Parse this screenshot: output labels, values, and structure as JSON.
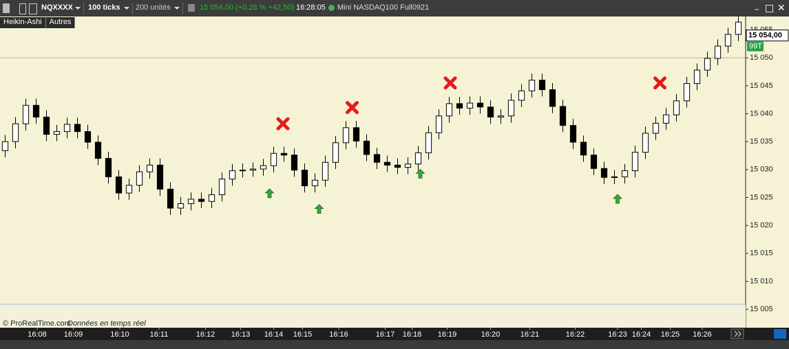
{
  "toolbar": {
    "instrument": "NQXXXX",
    "period": "100 ticks",
    "units": "200 unités",
    "price": "15 054,00",
    "change": "(+0,28 % +42,50)",
    "time": "16:28:05",
    "contract": "Mini NASDAQ100 Full0921"
  },
  "tabs": [
    "Heikin-Ashi",
    "Autres"
  ],
  "footer": {
    "copyright": "© ProRealTime.com",
    "notice": "Données en temps réel"
  },
  "chart_data": {
    "type": "candlestick",
    "xlim": [
      0,
      72.2
    ],
    "ylim": [
      15001.7,
      15057.4
    ],
    "xticks": [
      {
        "value": 3.6,
        "label": "16:08"
      },
      {
        "value": 7.1,
        "label": "16:09"
      },
      {
        "value": 11.6,
        "label": "16:10"
      },
      {
        "value": 15.4,
        "label": "16:11"
      },
      {
        "value": 19.9,
        "label": "16:12"
      },
      {
        "value": 23.3,
        "label": "16:13"
      },
      {
        "value": 26.5,
        "label": "16:14"
      },
      {
        "value": 29.3,
        "label": "16:15"
      },
      {
        "value": 32.8,
        "label": "16:16"
      },
      {
        "value": 37.3,
        "label": "16:17"
      },
      {
        "value": 39.9,
        "label": "16:18"
      },
      {
        "value": 43.3,
        "label": "16:19"
      },
      {
        "value": 47.5,
        "label": "16:20"
      },
      {
        "value": 51.3,
        "label": "16:21"
      },
      {
        "value": 55.7,
        "label": "16:22"
      },
      {
        "value": 59.8,
        "label": "16:23"
      },
      {
        "value": 62.1,
        "label": "16:24"
      },
      {
        "value": 64.9,
        "label": "16:25"
      },
      {
        "value": 68.0,
        "label": "16:26"
      }
    ],
    "yticks": [
      {
        "value": 15005,
        "label": "15 005"
      },
      {
        "value": 15010,
        "label": "15 010"
      },
      {
        "value": 15015,
        "label": "15 015"
      },
      {
        "value": 15020,
        "label": "15 020"
      },
      {
        "value": 15025,
        "label": "15 025"
      },
      {
        "value": 15030,
        "label": "15 030"
      },
      {
        "value": 15035,
        "label": "15 035"
      },
      {
        "value": 15040,
        "label": "15 040"
      },
      {
        "value": 15045,
        "label": "15 045"
      },
      {
        "value": 15050,
        "label": "15 050"
      },
      {
        "value": 15055,
        "label": "15 055"
      }
    ],
    "reference_line": 15050,
    "last_price": {
      "value": 15054,
      "label": "15 054,00"
    },
    "tick_count_label": "99T",
    "up_color": "#ffffff",
    "down_color": "#000000",
    "open": [
      15033.4,
      15035.0,
      15038.2,
      15041.5,
      15039.4,
      15036.3,
      15036.8,
      15038.1,
      15036.8,
      15034.9,
      15032.0,
      15028.7,
      15025.8,
      15027.2,
      15029.6,
      15030.8,
      15026.5,
      15023.1,
      15023.9,
      15024.7,
      15024.3,
      15025.5,
      15028.3,
      15029.8,
      15029.9,
      15030.1,
      15030.7,
      15032.9,
      15032.6,
      15029.9,
      15027.1,
      15028.1,
      15031.3,
      15034.8,
      15037.5,
      15035.1,
      15032.7,
      15031.3,
      15030.8,
      15030.4,
      15031.0,
      15033.0,
      15036.6,
      15039.6,
      15041.8,
      15041.0,
      15041.9,
      15041.2,
      15039.4,
      15039.6,
      15042.4,
      15044.1,
      15046.0,
      15044.3,
      15041.3,
      15037.9,
      15034.9,
      15032.6,
      15030.2,
      15028.6,
      15028.7,
      15029.8,
      15033.1,
      15036.5,
      15038.3,
      15039.8,
      15042.3,
      15045.4,
      15047.8,
      15049.9,
      15052.1,
      15054.2
    ],
    "high": [
      15036.2,
      15039.4,
      15042.7,
      15042.7,
      15040.6,
      15038.0,
      15039.3,
      15039.3,
      15038.0,
      15036.1,
      15033.2,
      15029.9,
      15028.4,
      15030.8,
      15032.0,
      15032.0,
      15027.7,
      15025.1,
      15025.9,
      15025.9,
      15026.7,
      15029.5,
      15031.0,
      15031.1,
      15031.3,
      15031.9,
      15034.1,
      15034.1,
      15033.8,
      15031.1,
      15029.3,
      15032.5,
      15036.0,
      15038.7,
      15038.7,
      15036.3,
      15033.9,
      15032.5,
      15032.0,
      15032.2,
      15034.2,
      15037.8,
      15040.8,
      15043.0,
      15043.0,
      15043.1,
      15043.1,
      15042.4,
      15040.8,
      15043.6,
      15045.3,
      15047.2,
      15047.2,
      15045.5,
      15042.5,
      15039.1,
      15036.1,
      15033.8,
      15031.4,
      15029.9,
      15031.0,
      15034.3,
      15037.7,
      15039.5,
      15041.0,
      15043.5,
      15046.6,
      15049.0,
      15051.1,
      15053.3,
      15055.4,
      15057.6
    ],
    "low": [
      15032.2,
      15033.8,
      15037.0,
      15038.2,
      15035.1,
      15035.1,
      15035.6,
      15035.6,
      15033.7,
      15030.8,
      15027.5,
      15024.6,
      15024.6,
      15026.0,
      15028.4,
      15025.3,
      15021.9,
      15021.9,
      15022.7,
      15023.1,
      15023.1,
      15024.3,
      15027.1,
      15028.6,
      15028.7,
      15028.9,
      15029.5,
      15031.4,
      15028.7,
      15025.9,
      15025.9,
      15026.9,
      15030.1,
      15033.6,
      15033.9,
      15031.5,
      15030.1,
      15029.6,
      15029.2,
      15029.2,
      15029.8,
      15031.8,
      15035.4,
      15038.4,
      15039.8,
      15039.8,
      15040.0,
      15038.2,
      15038.2,
      15038.4,
      15041.2,
      15042.9,
      15043.1,
      15040.1,
      15036.7,
      15033.7,
      15031.4,
      15029.0,
      15027.4,
      15027.4,
      15027.5,
      15028.6,
      15031.9,
      15035.3,
      15037.1,
      15038.6,
      15041.1,
      15044.2,
      15046.6,
      15048.7,
      15050.9,
      15053.0
    ],
    "close": [
      15035.0,
      15038.2,
      15041.5,
      15039.4,
      15036.3,
      15036.8,
      15038.1,
      15036.8,
      15034.9,
      15032.0,
      15028.7,
      15025.8,
      15027.2,
      15029.6,
      15030.8,
      15026.5,
      15023.1,
      15023.9,
      15024.7,
      15024.3,
      15025.5,
      15028.3,
      15029.8,
      15029.9,
      15030.1,
      15030.7,
      15032.9,
      15032.6,
      15029.9,
      15027.1,
      15028.1,
      15031.3,
      15034.8,
      15037.5,
      15035.1,
      15032.7,
      15031.3,
      15030.8,
      15030.4,
      15031.0,
      15033.0,
      15036.6,
      15039.6,
      15041.8,
      15041.0,
      15041.9,
      15041.2,
      15039.4,
      15039.6,
      15042.4,
      15044.1,
      15046.0,
      15044.3,
      15041.3,
      15037.9,
      15034.9,
      15032.6,
      15030.2,
      15028.6,
      15028.7,
      15029.8,
      15033.1,
      15036.5,
      15038.3,
      15039.8,
      15042.3,
      15045.4,
      15047.8,
      15049.9,
      15052.1,
      15054.2,
      15056.4
    ],
    "sell_signals": {
      "color": "#e41b1b",
      "x": [
        27.4,
        34.1,
        43.6,
        63.9
      ],
      "y": [
        15038.2,
        15041.1,
        15045.5,
        15045.5
      ]
    },
    "buy_signals": {
      "color": "#3aa63a",
      "x": [
        26.1,
        30.9,
        40.7,
        59.8
      ],
      "y": [
        15025.7,
        15022.9,
        15029.2,
        15024.7
      ]
    }
  }
}
